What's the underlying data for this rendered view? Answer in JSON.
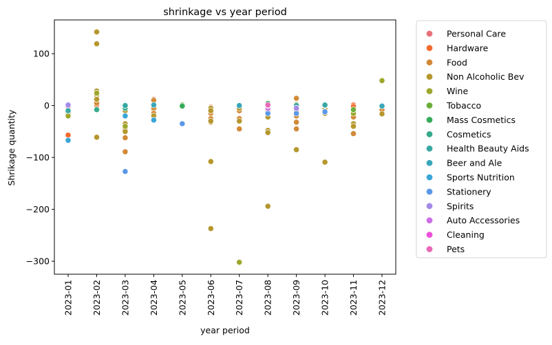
{
  "chart_data": {
    "type": "scatter",
    "title": "shrinkage vs year period",
    "xlabel": "year period",
    "ylabel": "Shrikage quantity",
    "x_categories": [
      "2023-01",
      "2023-02",
      "2023-03",
      "2023-04",
      "2023-05",
      "2023-06",
      "2023-07",
      "2023-08",
      "2023-09",
      "2023-10",
      "2023-11",
      "2023-12"
    ],
    "yticks": [
      100,
      0,
      -100,
      -200,
      -300
    ],
    "ytick_labels": [
      "100",
      "0",
      "−100",
      "−200",
      "−300"
    ],
    "ylim": [
      -325,
      165
    ],
    "grid": false,
    "legend_position": "outside-right",
    "series": [
      {
        "name": "Personal Care",
        "color": "#e8727a",
        "points": [
          [
            "2023-01",
            -2
          ],
          [
            "2023-03",
            -5
          ],
          [
            "2023-06",
            -3
          ],
          [
            "2023-09",
            -4
          ]
        ]
      },
      {
        "name": "Hardware",
        "color": "#f26b2e",
        "points": [
          [
            "2023-01",
            -57
          ],
          [
            "2023-02",
            1
          ],
          [
            "2023-04",
            12
          ],
          [
            "2023-04",
            -8
          ],
          [
            "2023-11",
            1
          ],
          [
            "2023-11",
            -2
          ]
        ]
      },
      {
        "name": "Food",
        "color": "#d28a38",
        "points": [
          [
            "2023-02",
            5
          ],
          [
            "2023-03",
            -20
          ],
          [
            "2023-03",
            -62
          ],
          [
            "2023-03",
            -89
          ],
          [
            "2023-04",
            10
          ],
          [
            "2023-04",
            -5
          ],
          [
            "2023-04",
            -15
          ],
          [
            "2023-06",
            -5
          ],
          [
            "2023-06",
            -15
          ],
          [
            "2023-06",
            -25
          ],
          [
            "2023-06",
            -32
          ],
          [
            "2023-07",
            -10
          ],
          [
            "2023-07",
            -25
          ],
          [
            "2023-07",
            -45
          ],
          [
            "2023-08",
            -10
          ],
          [
            "2023-09",
            14
          ],
          [
            "2023-09",
            -10
          ],
          [
            "2023-09",
            -20
          ],
          [
            "2023-09",
            -32
          ],
          [
            "2023-09",
            -45
          ],
          [
            "2023-10",
            -10
          ],
          [
            "2023-11",
            -22
          ],
          [
            "2023-11",
            -54
          ],
          [
            "2023-12",
            -8
          ]
        ]
      },
      {
        "name": "Non Alcoholic Bev",
        "color": "#b5972e",
        "points": [
          [
            "2023-01",
            -15
          ],
          [
            "2023-02",
            142
          ],
          [
            "2023-02",
            119
          ],
          [
            "2023-02",
            28
          ],
          [
            "2023-02",
            20
          ],
          [
            "2023-02",
            12
          ],
          [
            "2023-02",
            -61
          ],
          [
            "2023-03",
            -10
          ],
          [
            "2023-03",
            -35
          ],
          [
            "2023-03",
            -45
          ],
          [
            "2023-03",
            -50
          ],
          [
            "2023-04",
            -20
          ],
          [
            "2023-06",
            -5
          ],
          [
            "2023-06",
            -10
          ],
          [
            "2023-06",
            -30
          ],
          [
            "2023-06",
            -108
          ],
          [
            "2023-06",
            -237
          ],
          [
            "2023-07",
            -5
          ],
          [
            "2023-07",
            -30
          ],
          [
            "2023-08",
            -22
          ],
          [
            "2023-08",
            -48
          ],
          [
            "2023-08",
            -52
          ],
          [
            "2023-08",
            -194
          ],
          [
            "2023-09",
            -5
          ],
          [
            "2023-09",
            -85
          ],
          [
            "2023-10",
            -5
          ],
          [
            "2023-10",
            -15
          ],
          [
            "2023-10",
            -109
          ],
          [
            "2023-11",
            -35
          ],
          [
            "2023-11",
            -40
          ],
          [
            "2023-12",
            -16
          ]
        ]
      },
      {
        "name": "Wine",
        "color": "#9da72d",
        "points": [
          [
            "2023-01",
            -20
          ],
          [
            "2023-02",
            24
          ],
          [
            "2023-03",
            -40
          ],
          [
            "2023-07",
            -302
          ],
          [
            "2023-09",
            2
          ],
          [
            "2023-11",
            -15
          ],
          [
            "2023-12",
            48
          ]
        ]
      },
      {
        "name": "Tobacco",
        "color": "#6cae38",
        "points": [
          [
            "2023-05",
            1
          ],
          [
            "2023-11",
            -8
          ]
        ]
      },
      {
        "name": "Mass Cosmetics",
        "color": "#35ab5a",
        "points": [
          [
            "2023-05",
            -1
          ],
          [
            "2023-08",
            4
          ]
        ]
      },
      {
        "name": "Cosmetics",
        "color": "#36ab8c",
        "points": [
          [
            "2023-02",
            -8
          ],
          [
            "2023-03",
            -5
          ],
          [
            "2023-10",
            0
          ]
        ]
      },
      {
        "name": "Health  Beauty Aids",
        "color": "#37a8a3",
        "points": [
          [
            "2023-01",
            -10
          ],
          [
            "2023-03",
            0
          ],
          [
            "2023-09",
            0
          ],
          [
            "2023-10",
            1
          ]
        ]
      },
      {
        "name": "Beer and Ale",
        "color": "#39a7ba",
        "points": [
          [
            "2023-04",
            1
          ],
          [
            "2023-07",
            0
          ],
          [
            "2023-12",
            -1
          ]
        ]
      },
      {
        "name": "Sports Nutrition",
        "color": "#3aa6d6",
        "points": [
          [
            "2023-01",
            -67
          ],
          [
            "2023-03",
            -20
          ],
          [
            "2023-04",
            -28
          ]
        ]
      },
      {
        "name": "Stationery",
        "color": "#5c98e8",
        "points": [
          [
            "2023-03",
            -127
          ],
          [
            "2023-05",
            -35
          ],
          [
            "2023-08",
            -15
          ],
          [
            "2023-09",
            -15
          ],
          [
            "2023-10",
            -12
          ]
        ]
      },
      {
        "name": "Spirits",
        "color": "#a48ae8",
        "points": [
          [
            "2023-01",
            1
          ],
          [
            "2023-09",
            -5
          ]
        ]
      },
      {
        "name": "Auto Accessories",
        "color": "#cc6fe6",
        "points": [
          [
            "2023-08",
            -5
          ]
        ]
      },
      {
        "name": "Cleaning",
        "color": "#ec4fd8",
        "points": [
          [
            "2023-08",
            0
          ]
        ]
      },
      {
        "name": "Pets",
        "color": "#e969b8",
        "points": [
          [
            "2023-08",
            1
          ]
        ]
      }
    ]
  }
}
